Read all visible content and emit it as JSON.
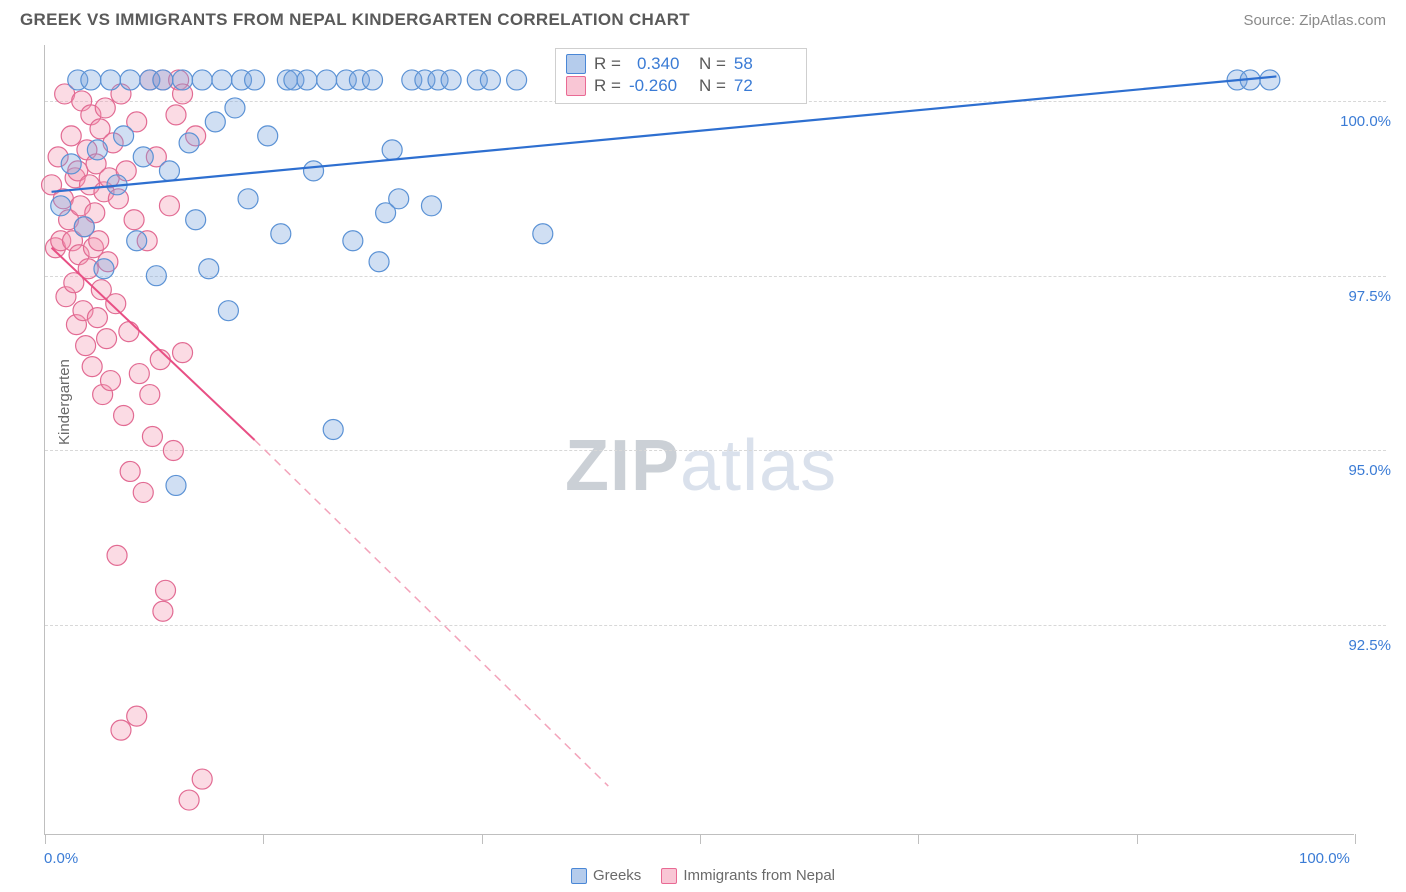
{
  "header": {
    "title": "GREEK VS IMMIGRANTS FROM NEPAL KINDERGARTEN CORRELATION CHART",
    "source": "Source: ZipAtlas.com"
  },
  "chart": {
    "type": "scatter",
    "ylabel": "Kindergarten",
    "watermark_zip": "ZIP",
    "watermark_atlas": "atlas",
    "xlim": [
      0,
      100
    ],
    "ylim": [
      89.5,
      100.8
    ],
    "x_ticks": [
      0,
      16.67,
      33.33,
      50,
      66.67,
      83.33,
      100
    ],
    "x_tick_labels_shown": {
      "0": "0.0%",
      "100": "100.0%"
    },
    "y_gridlines": [
      92.5,
      95.0,
      97.5,
      100.0
    ],
    "y_tick_labels": {
      "92.5": "92.5%",
      "95.0": "95.0%",
      "97.5": "97.5%",
      "100.0": "100.0%"
    },
    "colors": {
      "blue_fill": "rgba(121,163,220,0.35)",
      "blue_stroke": "#5b92d5",
      "pink_fill": "rgba(244,152,178,0.35)",
      "pink_stroke": "#e26b93",
      "trend_blue": "#2e6fd0",
      "trend_pink": "#e84f84",
      "grid": "#d8d8d8",
      "axis": "#bfbfbf",
      "label_text": "#3a7bd5"
    },
    "marker_radius": 10,
    "legend": {
      "series1": "Greeks",
      "series2": "Immigrants from Nepal"
    },
    "stats": {
      "series1": {
        "R_label": "R =",
        "R": "0.340",
        "N_label": "N =",
        "N": "58"
      },
      "series2": {
        "R_label": "R =",
        "R": "-0.260",
        "N_label": "N =",
        "N": "72"
      }
    },
    "trend_lines": {
      "blue": {
        "x1": 0.5,
        "y1": 98.7,
        "x2": 94,
        "y2": 100.35
      },
      "pink_solid": {
        "x1": 0.5,
        "y1": 97.9,
        "x2": 16,
        "y2": 95.15
      },
      "pink_dashed": {
        "x1": 16,
        "y1": 95.15,
        "x2": 43,
        "y2": 90.2
      }
    },
    "series_blue": [
      [
        1.2,
        98.5
      ],
      [
        2.0,
        99.1
      ],
      [
        2.5,
        100.3
      ],
      [
        3.0,
        98.2
      ],
      [
        3.5,
        100.3
      ],
      [
        4.0,
        99.3
      ],
      [
        4.5,
        97.6
      ],
      [
        5.0,
        100.3
      ],
      [
        5.5,
        98.8
      ],
      [
        6.0,
        99.5
      ],
      [
        6.5,
        100.3
      ],
      [
        7.0,
        98.0
      ],
      [
        7.5,
        99.2
      ],
      [
        8.0,
        100.3
      ],
      [
        8.5,
        97.5
      ],
      [
        9.0,
        100.3
      ],
      [
        9.5,
        99.0
      ],
      [
        10.0,
        94.5
      ],
      [
        10.5,
        100.3
      ],
      [
        11.0,
        99.4
      ],
      [
        11.5,
        98.3
      ],
      [
        12.0,
        100.3
      ],
      [
        12.5,
        97.6
      ],
      [
        13.0,
        99.7
      ],
      [
        13.5,
        100.3
      ],
      [
        14.0,
        97.0
      ],
      [
        14.5,
        99.9
      ],
      [
        15.0,
        100.3
      ],
      [
        15.5,
        98.6
      ],
      [
        16.0,
        100.3
      ],
      [
        17.0,
        99.5
      ],
      [
        18.0,
        98.1
      ],
      [
        18.5,
        100.3
      ],
      [
        19.0,
        100.3
      ],
      [
        20.0,
        100.3
      ],
      [
        20.5,
        99.0
      ],
      [
        21.5,
        100.3
      ],
      [
        22.0,
        95.3
      ],
      [
        23.0,
        100.3
      ],
      [
        23.5,
        98.0
      ],
      [
        24.0,
        100.3
      ],
      [
        25.0,
        100.3
      ],
      [
        25.5,
        97.7
      ],
      [
        26.0,
        98.4
      ],
      [
        26.5,
        99.3
      ],
      [
        27.0,
        98.6
      ],
      [
        28.0,
        100.3
      ],
      [
        29.0,
        100.3
      ],
      [
        29.5,
        98.5
      ],
      [
        30.0,
        100.3
      ],
      [
        31.0,
        100.3
      ],
      [
        33.0,
        100.3
      ],
      [
        34.0,
        100.3
      ],
      [
        36.0,
        100.3
      ],
      [
        38.0,
        98.1
      ],
      [
        91.0,
        100.3
      ],
      [
        92.0,
        100.3
      ],
      [
        93.5,
        100.3
      ]
    ],
    "series_pink": [
      [
        0.5,
        98.8
      ],
      [
        0.8,
        97.9
      ],
      [
        1.0,
        99.2
      ],
      [
        1.2,
        98.0
      ],
      [
        1.4,
        98.6
      ],
      [
        1.5,
        100.1
      ],
      [
        1.6,
        97.2
      ],
      [
        1.8,
        98.3
      ],
      [
        2.0,
        99.5
      ],
      [
        2.1,
        98.0
      ],
      [
        2.2,
        97.4
      ],
      [
        2.3,
        98.9
      ],
      [
        2.4,
        96.8
      ],
      [
        2.5,
        99.0
      ],
      [
        2.6,
        97.8
      ],
      [
        2.7,
        98.5
      ],
      [
        2.8,
        100.0
      ],
      [
        2.9,
        97.0
      ],
      [
        3.0,
        98.2
      ],
      [
        3.1,
        96.5
      ],
      [
        3.2,
        99.3
      ],
      [
        3.3,
        97.6
      ],
      [
        3.4,
        98.8
      ],
      [
        3.5,
        99.8
      ],
      [
        3.6,
        96.2
      ],
      [
        3.7,
        97.9
      ],
      [
        3.8,
        98.4
      ],
      [
        3.9,
        99.1
      ],
      [
        4.0,
        96.9
      ],
      [
        4.1,
        98.0
      ],
      [
        4.2,
        99.6
      ],
      [
        4.3,
        97.3
      ],
      [
        4.4,
        95.8
      ],
      [
        4.5,
        98.7
      ],
      [
        4.6,
        99.9
      ],
      [
        4.7,
        96.6
      ],
      [
        4.8,
        97.7
      ],
      [
        4.9,
        98.9
      ],
      [
        5.0,
        96.0
      ],
      [
        5.2,
        99.4
      ],
      [
        5.4,
        97.1
      ],
      [
        5.5,
        93.5
      ],
      [
        5.6,
        98.6
      ],
      [
        5.8,
        100.1
      ],
      [
        6.0,
        95.5
      ],
      [
        6.2,
        99.0
      ],
      [
        6.4,
        96.7
      ],
      [
        6.5,
        94.7
      ],
      [
        6.8,
        98.3
      ],
      [
        7.0,
        99.7
      ],
      [
        7.2,
        96.1
      ],
      [
        7.5,
        94.4
      ],
      [
        7.8,
        98.0
      ],
      [
        8.0,
        100.3
      ],
      [
        8.2,
        95.2
      ],
      [
        8.5,
        99.2
      ],
      [
        8.8,
        96.3
      ],
      [
        9.0,
        100.3
      ],
      [
        9.2,
        93.0
      ],
      [
        9.5,
        98.5
      ],
      [
        9.8,
        95.0
      ],
      [
        10.0,
        99.8
      ],
      [
        10.2,
        100.3
      ],
      [
        10.5,
        96.4
      ],
      [
        5.8,
        91.0
      ],
      [
        7.0,
        91.2
      ],
      [
        8.0,
        95.8
      ],
      [
        9.0,
        92.7
      ],
      [
        10.5,
        100.1
      ],
      [
        11.0,
        90.0
      ],
      [
        11.5,
        99.5
      ],
      [
        12.0,
        90.3
      ]
    ]
  }
}
